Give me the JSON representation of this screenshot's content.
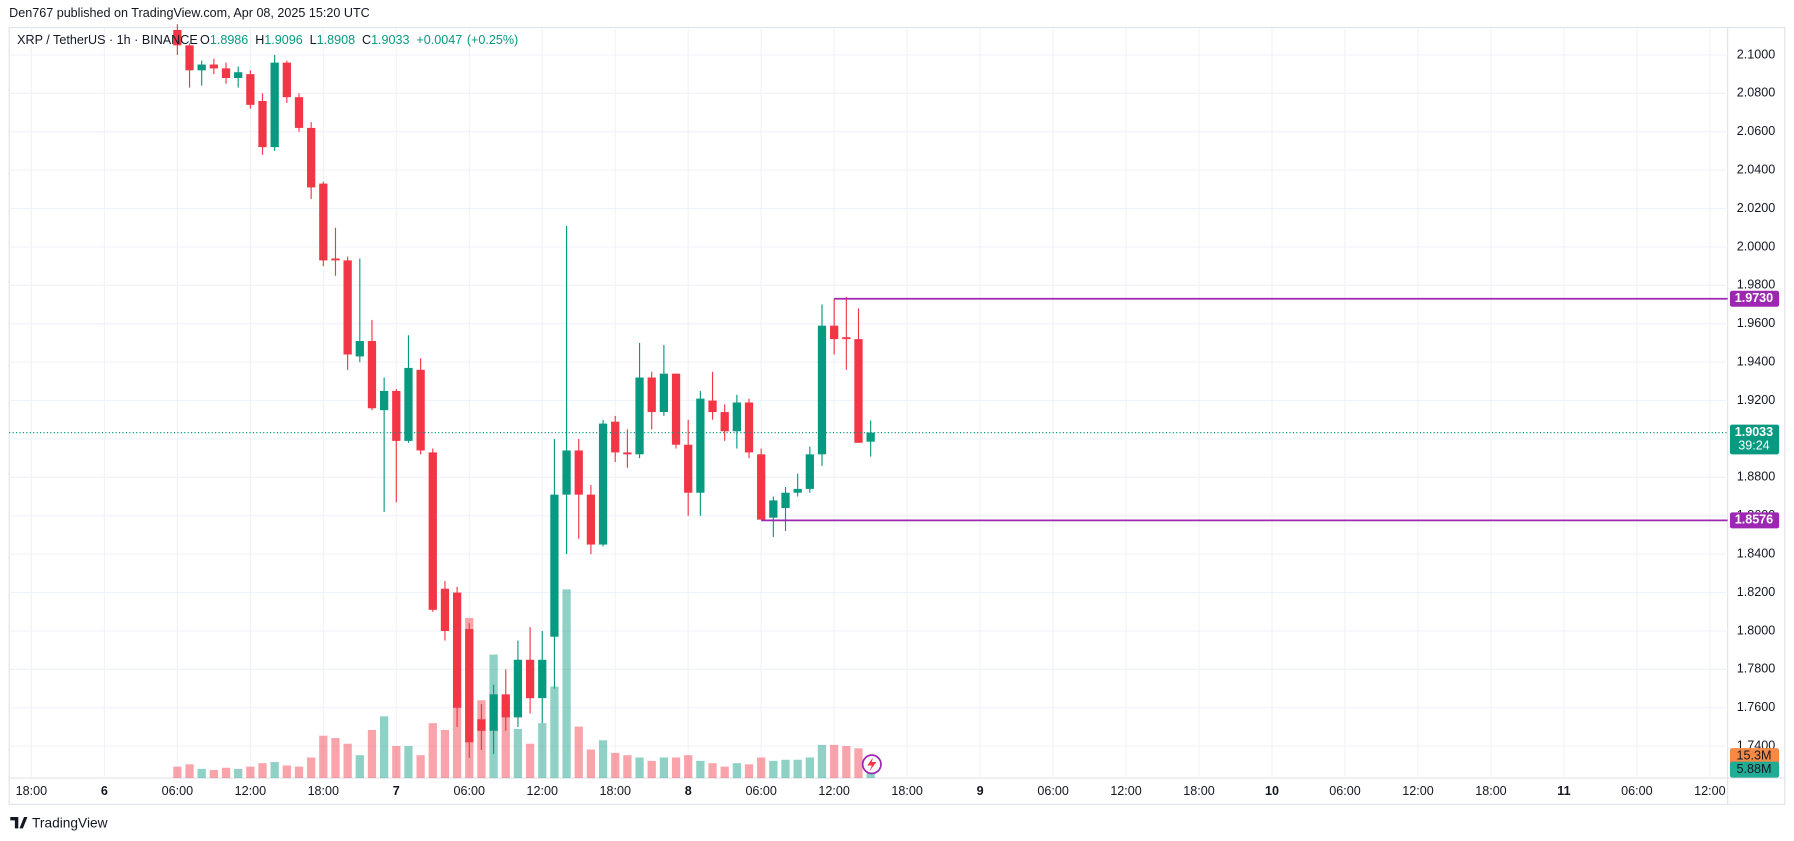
{
  "chart_data": {
    "type": "candlestick",
    "title": "Den767 published on TradingView.com, Apr 08, 2025 15:20 UTC",
    "symbol": "XRP / TetherUS · 1h · BINANCE",
    "ohlc_labels": [
      "O",
      "H",
      "L",
      "C"
    ],
    "change": "+0.0047",
    "change_percent": "(+0.25%)",
    "brand": "TradingView",
    "up_color": "#089981",
    "down_color": "#f23645",
    "grid": true,
    "candles": {
      "x": [
        0,
        1,
        2,
        3,
        4,
        5,
        6,
        7,
        8,
        9,
        10,
        11,
        12,
        13,
        14,
        15,
        16,
        17,
        18,
        19,
        20,
        21,
        22,
        23,
        24,
        25,
        26,
        27,
        28,
        29,
        30,
        31,
        32,
        33,
        34,
        35,
        36,
        37,
        38,
        39,
        40,
        41,
        42,
        43,
        44,
        45,
        46,
        47,
        48,
        49,
        50,
        51,
        52,
        53,
        54,
        55,
        56,
        57
      ],
      "open": [
        2.113,
        2.105,
        2.092,
        2.095,
        2.093,
        2.088,
        2.09,
        2.076,
        2.052,
        2.096,
        2.078,
        2.062,
        2.033,
        1.994,
        1.993,
        1.943,
        1.951,
        1.915,
        1.925,
        1.899,
        1.936,
        1.893,
        1.822,
        1.82,
        1.801,
        1.754,
        1.748,
        1.767,
        1.755,
        1.785,
        1.765,
        1.797,
        1.871,
        1.894,
        1.871,
        1.845,
        1.909,
        1.893,
        1.892,
        1.932,
        1.914,
        1.934,
        1.897,
        1.872,
        1.92,
        1.914,
        1.904,
        1.919,
        1.892,
        1.859,
        1.864,
        1.872,
        1.874,
        1.892,
        1.959,
        1.953,
        1.952,
        1.8986
      ],
      "high": [
        2.116,
        2.106,
        2.097,
        2.098,
        2.096,
        2.094,
        2.092,
        2.08,
        2.1,
        2.097,
        2.08,
        2.065,
        2.034,
        2.01,
        1.995,
        1.994,
        1.962,
        1.932,
        1.926,
        1.954,
        1.942,
        1.895,
        1.826,
        1.823,
        1.804,
        1.762,
        1.772,
        1.78,
        1.795,
        1.802,
        1.8,
        1.9,
        2.011,
        1.9,
        1.876,
        1.91,
        1.912,
        1.905,
        1.95,
        1.935,
        1.949,
        1.934,
        1.91,
        1.925,
        1.935,
        1.918,
        1.923,
        1.921,
        1.895,
        1.87,
        1.875,
        1.882,
        1.896,
        1.97,
        1.973,
        1.974,
        1.968,
        1.9096
      ],
      "low": [
        2.1,
        2.083,
        2.084,
        2.09,
        2.085,
        2.083,
        2.072,
        2.048,
        2.05,
        2.075,
        2.06,
        2.025,
        1.99,
        1.985,
        1.936,
        1.94,
        1.915,
        1.862,
        1.867,
        1.898,
        1.892,
        1.81,
        1.795,
        1.75,
        1.734,
        1.738,
        1.736,
        1.748,
        1.75,
        1.757,
        1.752,
        1.77,
        1.84,
        1.848,
        1.84,
        1.844,
        1.888,
        1.885,
        1.89,
        1.905,
        1.912,
        1.895,
        1.86,
        1.86,
        1.91,
        1.899,
        1.895,
        1.89,
        1.858,
        1.849,
        1.852,
        1.87,
        1.872,
        1.886,
        1.944,
        1.936,
        1.898,
        1.8908
      ],
      "close": [
        2.105,
        2.092,
        2.095,
        2.093,
        2.088,
        2.091,
        2.074,
        2.052,
        2.096,
        2.078,
        2.062,
        2.031,
        1.993,
        1.993,
        1.944,
        1.951,
        1.916,
        1.925,
        1.899,
        1.937,
        1.894,
        1.811,
        1.8,
        1.76,
        1.742,
        1.748,
        1.767,
        1.755,
        1.785,
        1.765,
        1.785,
        1.871,
        1.894,
        1.871,
        1.845,
        1.908,
        1.893,
        1.892,
        1.932,
        1.914,
        1.934,
        1.897,
        1.872,
        1.921,
        1.914,
        1.904,
        1.919,
        1.893,
        1.858,
        1.868,
        1.872,
        1.874,
        1.892,
        1.959,
        1.952,
        1.952,
        1.898,
        1.9033
      ],
      "volume": [
        8,
        9.6,
        6.4,
        5.6,
        7.2,
        6.4,
        8,
        10.4,
        11.2,
        8.8,
        8,
        14.4,
        29.6,
        28,
        24,
        16,
        33.6,
        43.2,
        22.4,
        22.4,
        16,
        38.4,
        33.6,
        60,
        112,
        54.4,
        86.4,
        54.4,
        34.4,
        24,
        38.4,
        64,
        132,
        36,
        20,
        26.4,
        17.6,
        16,
        14.4,
        12,
        14.4,
        14.4,
        16,
        12,
        10.4,
        8,
        10.4,
        9.6,
        14.4,
        12,
        12.8,
        12.8,
        14.4,
        23.2,
        23.2,
        22.4,
        20.8,
        5.88
      ]
    },
    "volume_lim": [
      0,
      525
    ],
    "volume_tags": [
      {
        "value": 15.3,
        "label": "15.3M",
        "color": "#f68a44"
      },
      {
        "value": 5.88,
        "label": "5.88M",
        "color": "#22ab94"
      }
    ],
    "levels": [
      {
        "value": 1.973,
        "label": "1.9730",
        "x": 54,
        "color": "#9c27b0"
      },
      {
        "value": 1.8576,
        "label": "1.8576",
        "x": 48,
        "color": "#9c27b0"
      }
    ],
    "last_price": 1.9033,
    "countdown": "39:24",
    "ylim": [
      1.7234,
      2.1143
    ],
    "yticks": [
      {
        "value": 2.1,
        "label": "2.1000"
      },
      {
        "value": 2.08,
        "label": "2.0800"
      },
      {
        "value": 2.06,
        "label": "2.0600"
      },
      {
        "value": 2.04,
        "label": "2.0400"
      },
      {
        "value": 2.02,
        "label": "2.0200"
      },
      {
        "value": 2.0,
        "label": "2.0000"
      },
      {
        "value": 1.98,
        "label": "1.9800"
      },
      {
        "value": 1.96,
        "label": "1.9600"
      },
      {
        "value": 1.94,
        "label": "1.9400"
      },
      {
        "value": 1.92,
        "label": "1.9200"
      },
      {
        "value": 1.9,
        "label": "1.9000"
      },
      {
        "value": 1.88,
        "label": "1.8800"
      },
      {
        "value": 1.86,
        "label": "1.8600"
      },
      {
        "value": 1.84,
        "label": "1.8400"
      },
      {
        "value": 1.82,
        "label": "1.8200"
      },
      {
        "value": 1.8,
        "label": "1.8000"
      },
      {
        "value": 1.78,
        "label": "1.7800"
      },
      {
        "value": 1.76,
        "label": "1.7600"
      },
      {
        "value": 1.74,
        "label": "1.7400"
      }
    ],
    "xlim": [
      -13.83,
      127.46
    ],
    "xticks": [
      {
        "value": -12,
        "label": "18:00"
      },
      {
        "value": -6,
        "label": "6"
      },
      {
        "value": 0,
        "label": "06:00"
      },
      {
        "value": 6,
        "label": "12:00"
      },
      {
        "value": 12,
        "label": "18:00"
      },
      {
        "value": 18,
        "label": "7"
      },
      {
        "value": 24,
        "label": "06:00"
      },
      {
        "value": 30,
        "label": "12:00"
      },
      {
        "value": 36,
        "label": "18:00"
      },
      {
        "value": 42,
        "label": "8"
      },
      {
        "value": 48,
        "label": "06:00"
      },
      {
        "value": 54,
        "label": "12:00"
      },
      {
        "value": 60,
        "label": "18:00"
      },
      {
        "value": 66,
        "label": "9"
      },
      {
        "value": 72,
        "label": "06:00"
      },
      {
        "value": 78,
        "label": "12:00"
      },
      {
        "value": 84,
        "label": "18:00"
      },
      {
        "value": 90,
        "label": "10"
      },
      {
        "value": 96,
        "label": "06:00"
      },
      {
        "value": 102,
        "label": "12:00"
      },
      {
        "value": 108,
        "label": "18:00"
      },
      {
        "value": 114,
        "label": "11"
      },
      {
        "value": 120,
        "label": "06:00"
      },
      {
        "value": 126,
        "label": "12:00"
      }
    ]
  }
}
